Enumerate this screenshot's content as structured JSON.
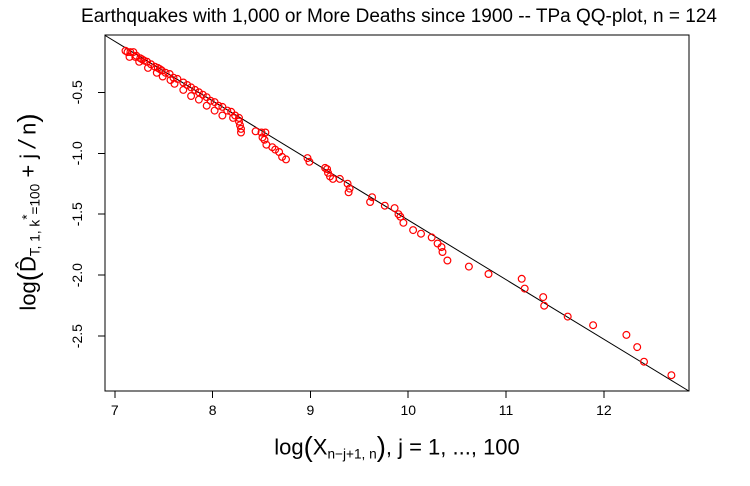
{
  "chart_data": {
    "type": "scatter",
    "title": "Earthquakes with 1,000 or More Deaths since 1900 -- TPa QQ-plot, n = 124",
    "xlabel_plain": "log(X_(n-j+1, n)), j = 1, ..., 100",
    "ylabel_plain": "log(D^_(T, 1, k*=100) + j/n)",
    "xlabel_parts": [
      {
        "t": "log",
        "s": "n"
      },
      {
        "t": "(",
        "s": "big"
      },
      {
        "t": "X",
        "s": "n"
      },
      {
        "t": "n−j+1, n",
        "s": "sub"
      },
      {
        "t": ")",
        "s": "big"
      },
      {
        "t": ", j = 1, ..., 100",
        "s": "n"
      }
    ],
    "ylabel_parts": [
      {
        "t": "log",
        "s": "n"
      },
      {
        "t": "(",
        "s": "big"
      },
      {
        "t": "D̂",
        "s": "n"
      },
      {
        "t": "T, 1, k",
        "s": "sub"
      },
      {
        "t": "*",
        "s": "subsup"
      },
      {
        "t": "=100",
        "s": "sub"
      },
      {
        "t": " + j ",
        "s": "n"
      },
      {
        "t": "/",
        "s": "slash"
      },
      {
        "t": " n",
        "s": "n"
      },
      {
        "t": ")",
        "s": "big"
      }
    ],
    "xlim": [
      6.9,
      12.87
    ],
    "ylim": [
      -2.95,
      -0.03
    ],
    "x_ticks": [
      7,
      8,
      9,
      10,
      11,
      12
    ],
    "x_tick_labels": [
      "7",
      "8",
      "9",
      "10",
      "11",
      "12"
    ],
    "y_ticks": [
      -0.5,
      -1.0,
      -1.5,
      -2.0,
      -2.5
    ],
    "y_tick_labels": [
      "-0.5",
      "-1.0",
      "-1.5",
      "-2.0",
      "-2.5"
    ],
    "grid": false,
    "legend": null,
    "point_color": "#ff0000",
    "line_color": "#000000",
    "refline": {
      "x1": 6.9,
      "y1": -0.033,
      "x2": 12.87,
      "y2": -2.951
    },
    "points": [
      [
        7.11,
        -0.16
      ],
      [
        7.13,
        -0.17
      ],
      [
        7.16,
        -0.17
      ],
      [
        7.19,
        -0.17
      ],
      [
        7.22,
        -0.2
      ],
      [
        7.15,
        -0.21
      ],
      [
        7.21,
        -0.21
      ],
      [
        7.26,
        -0.22
      ],
      [
        7.28,
        -0.23
      ],
      [
        7.3,
        -0.24
      ],
      [
        7.25,
        -0.25
      ],
      [
        7.33,
        -0.25
      ],
      [
        7.37,
        -0.27
      ],
      [
        7.41,
        -0.29
      ],
      [
        7.34,
        -0.3
      ],
      [
        7.44,
        -0.3
      ],
      [
        7.46,
        -0.31
      ],
      [
        7.48,
        -0.32
      ],
      [
        7.43,
        -0.34
      ],
      [
        7.52,
        -0.34
      ],
      [
        7.56,
        -0.35
      ],
      [
        7.49,
        -0.37
      ],
      [
        7.6,
        -0.38
      ],
      [
        7.64,
        -0.39
      ],
      [
        7.57,
        -0.4
      ],
      [
        7.7,
        -0.42
      ],
      [
        7.61,
        -0.43
      ],
      [
        7.74,
        -0.44
      ],
      [
        7.78,
        -0.46
      ],
      [
        7.7,
        -0.48
      ],
      [
        7.82,
        -0.48
      ],
      [
        7.86,
        -0.5
      ],
      [
        7.78,
        -0.53
      ],
      [
        7.9,
        -0.52
      ],
      [
        7.94,
        -0.54
      ],
      [
        7.86,
        -0.56
      ],
      [
        7.98,
        -0.57
      ],
      [
        8.02,
        -0.58
      ],
      [
        7.94,
        -0.61
      ],
      [
        8.06,
        -0.61
      ],
      [
        8.1,
        -0.62
      ],
      [
        8.02,
        -0.65
      ],
      [
        8.15,
        -0.65
      ],
      [
        8.19,
        -0.66
      ],
      [
        8.1,
        -0.69
      ],
      [
        8.23,
        -0.69
      ],
      [
        8.27,
        -0.71
      ],
      [
        8.21,
        -0.71
      ],
      [
        8.27,
        -0.74
      ],
      [
        8.28,
        -0.77
      ],
      [
        8.29,
        -0.8
      ],
      [
        8.29,
        -0.83
      ],
      [
        8.44,
        -0.82
      ],
      [
        8.5,
        -0.83
      ],
      [
        8.54,
        -0.83
      ],
      [
        8.51,
        -0.87
      ],
      [
        8.53,
        -0.89
      ],
      [
        8.55,
        -0.93
      ],
      [
        8.61,
        -0.95
      ],
      [
        8.64,
        -0.97
      ],
      [
        8.68,
        -0.99
      ],
      [
        8.71,
        -1.03
      ],
      [
        8.75,
        -1.05
      ],
      [
        8.97,
        -1.04
      ],
      [
        8.99,
        -1.07
      ],
      [
        9.15,
        -1.12
      ],
      [
        9.17,
        -1.13
      ],
      [
        9.18,
        -1.16
      ],
      [
        9.2,
        -1.19
      ],
      [
        9.23,
        -1.21
      ],
      [
        9.3,
        -1.21
      ],
      [
        9.38,
        -1.25
      ],
      [
        9.4,
        -1.29
      ],
      [
        9.39,
        -1.32
      ],
      [
        9.63,
        -1.36
      ],
      [
        9.61,
        -1.4
      ],
      [
        9.76,
        -1.43
      ],
      [
        9.86,
        -1.45
      ],
      [
        9.9,
        -1.5
      ],
      [
        9.92,
        -1.52
      ],
      [
        9.95,
        -1.57
      ],
      [
        10.05,
        -1.63
      ],
      [
        10.13,
        -1.66
      ],
      [
        10.24,
        -1.69
      ],
      [
        10.3,
        -1.74
      ],
      [
        10.34,
        -1.77
      ],
      [
        10.35,
        -1.81
      ],
      [
        10.4,
        -1.88
      ],
      [
        10.62,
        -1.93
      ],
      [
        10.82,
        -1.99
      ],
      [
        11.16,
        -2.03
      ],
      [
        11.19,
        -2.11
      ],
      [
        11.38,
        -2.18
      ],
      [
        11.39,
        -2.25
      ],
      [
        11.63,
        -2.34
      ],
      [
        11.89,
        -2.41
      ],
      [
        12.23,
        -2.49
      ],
      [
        12.34,
        -2.59
      ],
      [
        12.41,
        -2.71
      ],
      [
        12.69,
        -2.82
      ]
    ]
  }
}
